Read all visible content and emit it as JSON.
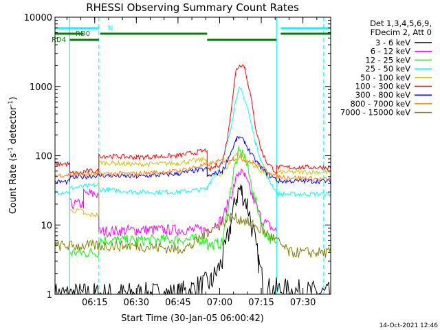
{
  "chart_data": {
    "type": "line",
    "title": "RHESSI Observing Summary Count Rates",
    "xlabel": "Start Time (30-Jan-05 06:00:42)",
    "ylabel": "Count Rate (s⁻¹ detector⁻¹)",
    "ylabel_main": "Count Rate (s",
    "ylabel_mid": " detector",
    "ylabel_end": ")",
    "ylabel_sup": "-1",
    "yscale": "log",
    "xlim": [
      "06:00:42",
      "07:40:00"
    ],
    "ylim": [
      1,
      10000
    ],
    "xticks": [
      "06:15",
      "06:30",
      "06:45",
      "07:00",
      "07:15",
      "07:30"
    ],
    "yticks": [
      "1",
      "10",
      "100",
      "1000",
      "10000"
    ],
    "legend_header": [
      "Det 1,3,4,5,6,9,",
      "FDecim 2, Att 0"
    ],
    "legend_placement": "right",
    "grid": false,
    "footer_date": "14-Oct-2021 12:46",
    "state_bars": [
      {
        "label": "N",
        "color": "#00ffff",
        "spans": [
          [
            "06:00:42",
            "06:16:30"
          ],
          [
            "07:22:00",
            "07:40:00"
          ]
        ]
      },
      {
        "label": "RD0",
        "color": "#008000",
        "spans": [
          [
            "06:00:42",
            "06:11:00"
          ],
          [
            "06:17:00",
            "06:55:30"
          ],
          [
            "07:22:00",
            "07:40:00"
          ]
        ]
      },
      {
        "label": "RD4",
        "color": "#008000",
        "spans": [
          [
            "06:06:00",
            "06:16:30"
          ],
          [
            "06:55:30",
            "07:20:30"
          ]
        ]
      }
    ],
    "vlines_cyan_solid": [
      "06:06:00",
      "07:20:30"
    ],
    "vlines_cyan_dashed": [
      "06:16:30",
      "07:37:30"
    ],
    "series": [
      {
        "name": "3 - 6 keV",
        "color": "#000000",
        "x": [
          "06:00:42",
          "06:45",
          "06:57",
          "07:01",
          "07:04",
          "07:06",
          "07:07",
          "07:08",
          "07:10",
          "07:12",
          "07:14",
          "07:16",
          "07:40"
        ],
        "y": [
          1,
          1,
          1.5,
          3,
          10,
          25,
          33,
          30,
          20,
          8,
          3,
          1.2,
          1
        ]
      },
      {
        "name": "6 - 12 keV",
        "color": "#ff00ff",
        "x": [
          "06:00:42",
          "06:06",
          "06:06",
          "06:11",
          "06:11",
          "06:16:30",
          "06:16:30",
          "06:30",
          "06:45",
          "06:55:30",
          "06:55:30",
          "07:01",
          "07:05",
          "07:07",
          "07:09",
          "07:12",
          "07:15",
          "07:20:30",
          "07:20:30",
          "07:40"
        ],
        "y": [
          null,
          null,
          20,
          20,
          28,
          28,
          8,
          8.5,
          8.5,
          8.5,
          8.5,
          12,
          35,
          60,
          50,
          25,
          12,
          8,
          null,
          null
        ]
      },
      {
        "name": "12 - 25 keV",
        "color": "#00ff00",
        "x": [
          "06:00:42",
          "06:06",
          "06:06",
          "06:11",
          "06:11",
          "06:16:30",
          "06:16:30",
          "06:30",
          "06:45",
          "06:55:30",
          "06:55:30",
          "07:01",
          "07:05",
          "07:07",
          "07:09",
          "07:12",
          "07:16",
          "07:20:30",
          "07:20:30",
          "07:40"
        ],
        "y": [
          null,
          null,
          4,
          4,
          4,
          4,
          6,
          6,
          6.2,
          6.2,
          5,
          5.5,
          60,
          115,
          100,
          30,
          8,
          5,
          null,
          null
        ]
      },
      {
        "name": "25 - 50 keV",
        "color": "#00ffff",
        "x": [
          "06:00:42",
          "06:06",
          "06:06",
          "06:16:30",
          "06:16:30",
          "06:30",
          "06:45",
          "06:55:30",
          "06:55:30",
          "07:01",
          "07:04",
          "07:06",
          "07:07",
          "07:08",
          "07:10",
          "07:13",
          "07:17",
          "07:20:30",
          "07:20:30",
          "07:40"
        ],
        "y": [
          30,
          30,
          34,
          38,
          33,
          30,
          30,
          33,
          36,
          80,
          250,
          700,
          920,
          850,
          500,
          150,
          50,
          30,
          28,
          28
        ]
      },
      {
        "name": "50 - 100 keV",
        "color": "#c8c800",
        "x": [
          "06:00:42",
          "06:06",
          "06:06",
          "06:11",
          "06:11",
          "06:16:30",
          "06:16:30",
          "06:30",
          "06:45",
          "06:55:30",
          "06:55:30",
          "07:01",
          "07:06",
          "07:10",
          "07:15",
          "07:20:30",
          "07:20:30",
          "07:40"
        ],
        "y": [
          null,
          null,
          16,
          16,
          14,
          14,
          80,
          75,
          78,
          90,
          50,
          55,
          110,
          85,
          60,
          48,
          58,
          58
        ]
      },
      {
        "name": "100 - 300 keV",
        "color": "#ff0000",
        "x": [
          "06:00:42",
          "06:06",
          "06:06",
          "06:11",
          "06:11",
          "06:16:30",
          "06:16:30",
          "06:30",
          "06:45",
          "06:55:30",
          "06:55:30",
          "07:01",
          "07:03",
          "07:05",
          "07:06",
          "07:08",
          "07:09",
          "07:11",
          "07:13",
          "07:15",
          "07:17",
          "07:20:30",
          "07:20:30",
          "07:40"
        ],
        "y": [
          76,
          76,
          56,
          56,
          60,
          60,
          100,
          95,
          100,
          120,
          60,
          80,
          200,
          900,
          1800,
          2100,
          1900,
          800,
          250,
          120,
          80,
          58,
          68,
          68
        ]
      },
      {
        "name": "300 - 800 keV",
        "color": "#0000ff",
        "x": [
          "06:00:42",
          "06:06",
          "06:06",
          "06:16:30",
          "06:16:30",
          "06:30",
          "06:45",
          "06:55:30",
          "06:55:30",
          "07:01",
          "07:04",
          "07:06",
          "07:07",
          "07:09",
          "07:11",
          "07:14",
          "07:17",
          "07:20:30",
          "07:20:30",
          "07:40"
        ],
        "y": [
          42,
          42,
          48,
          52,
          52,
          50,
          55,
          65,
          50,
          60,
          110,
          170,
          185,
          160,
          110,
          75,
          55,
          45,
          43,
          43
        ]
      },
      {
        "name": "800 - 7000 keV",
        "color": "#ff8000",
        "x": [
          "06:00:42",
          "06:16:30",
          "06:30",
          "06:45",
          "06:55:30",
          "07:01",
          "07:05",
          "07:08",
          "07:12",
          "07:16",
          "07:20:30",
          "07:40"
        ],
        "y": [
          52,
          55,
          55,
          60,
          75,
          85,
          92,
          90,
          80,
          65,
          50,
          45
        ]
      },
      {
        "name": "7000 - 15000 keV",
        "color": "#808000",
        "x": [
          "06:00:42",
          "06:16:30",
          "06:30",
          "06:45",
          "06:50",
          "06:55:30",
          "07:00",
          "07:04",
          "07:08",
          "07:12",
          "07:16",
          "07:20:30",
          "07:25",
          "07:40"
        ],
        "y": [
          5,
          5,
          5,
          4.5,
          5,
          8,
          10,
          13,
          12,
          10,
          8,
          6,
          4,
          4
        ]
      }
    ]
  }
}
